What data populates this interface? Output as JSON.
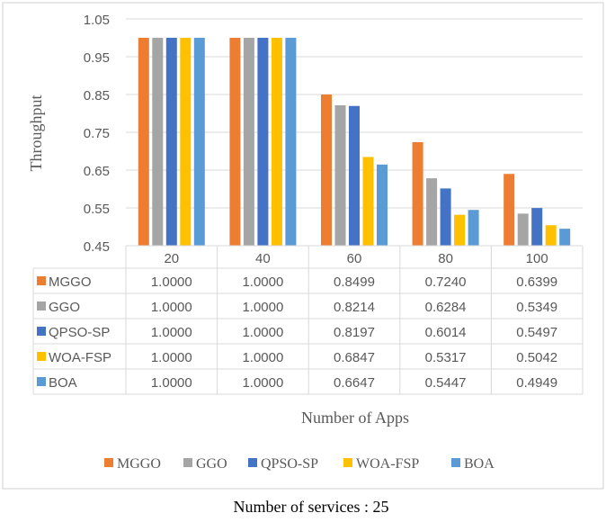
{
  "chart_data": {
    "type": "bar",
    "title": "",
    "xlabel": "Number of Apps",
    "ylabel": "Throughput",
    "ylim": [
      0.45,
      1.05
    ],
    "yticks": [
      "0.45",
      "0.55",
      "0.65",
      "0.75",
      "0.85",
      "0.95",
      "1.05"
    ],
    "grid": true,
    "legend": "bottom",
    "categories": [
      "20",
      "40",
      "60",
      "80",
      "100"
    ],
    "series": [
      {
        "name": "MGGO",
        "color": "#ED7D31",
        "values": [
          1.0,
          1.0,
          0.8499,
          0.724,
          0.6399
        ],
        "labels": [
          "1.0000",
          "1.0000",
          "0.8499",
          "0.7240",
          "0.6399"
        ]
      },
      {
        "name": "GGO",
        "color": "#A5A5A5",
        "values": [
          1.0,
          1.0,
          0.8214,
          0.6284,
          0.5349
        ],
        "labels": [
          "1.0000",
          "1.0000",
          "0.8214",
          "0.6284",
          "0.5349"
        ]
      },
      {
        "name": "QPSO-SP",
        "color": "#4472C4",
        "values": [
          1.0,
          1.0,
          0.8197,
          0.6014,
          0.5497
        ],
        "labels": [
          "1.0000",
          "1.0000",
          "0.8197",
          "0.6014",
          "0.5497"
        ]
      },
      {
        "name": "WOA-FSP",
        "color": "#FFC000",
        "values": [
          1.0,
          1.0,
          0.6847,
          0.5317,
          0.5042
        ],
        "labels": [
          "1.0000",
          "1.0000",
          "0.6847",
          "0.5317",
          "0.5042"
        ]
      },
      {
        "name": "BOA",
        "color": "#5B9BD5",
        "values": [
          1.0,
          1.0,
          0.6647,
          0.5447,
          0.4949
        ],
        "labels": [
          "1.0000",
          "1.0000",
          "0.6647",
          "0.5447",
          "0.4949"
        ]
      }
    ],
    "caption": "Number of services : 25"
  }
}
